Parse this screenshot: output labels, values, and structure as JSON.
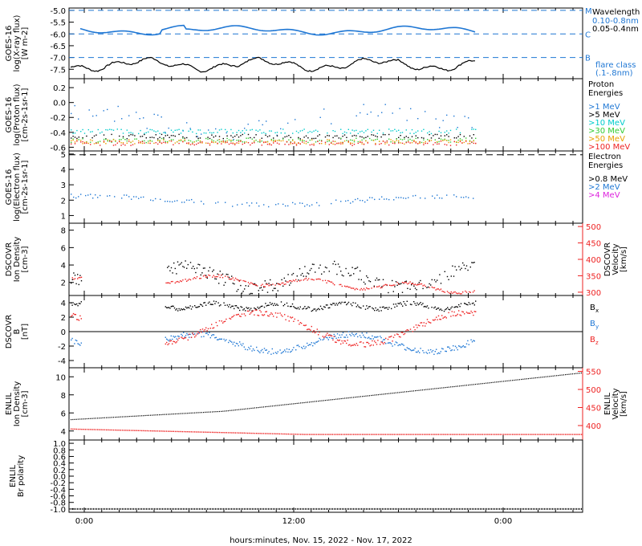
{
  "chart_data": [
    {
      "type": "line",
      "panel": "xray",
      "ylabel_lines": [
        "GOES-16",
        "log(X-ray flux)",
        "[W m-2]"
      ],
      "yticks": [
        "-5.0",
        "-5.5",
        "-6.0",
        "-6.5",
        "-7.0",
        "-7.5"
      ],
      "ylim": [
        -7.9,
        -4.9
      ],
      "legend_title": "Wavelength",
      "series": [
        {
          "name": "0.10-0.8nm",
          "color": "#1f77d4",
          "level": -5.85
        },
        {
          "name": "0.05-0.4nm",
          "color": "#000000",
          "level": -7.3
        }
      ],
      "flare_lines": [
        {
          "label": "M",
          "value": -5.0
        },
        {
          "label": "C",
          "value": -6.0
        },
        {
          "label": "B",
          "value": -7.0
        }
      ],
      "flare_note": [
        "flare class",
        "(.1-.8nm)"
      ]
    },
    {
      "type": "scatter",
      "panel": "proton",
      "ylabel_lines": [
        "GOES-16",
        "log(Proton flux)",
        "[cm-2s-1sr-1]"
      ],
      "yticks": [
        "0.2",
        "0.0",
        "-0.2",
        "-0.4",
        "-0.6"
      ],
      "ylim": [
        -0.65,
        0.32
      ],
      "legend_title": [
        "Proton",
        "Energies"
      ],
      "series": [
        {
          "name": ">1 MeV",
          "color": "#1f77d4",
          "level": -0.25
        },
        {
          "name": ">5 MeV",
          "color": "#000000",
          "level": -0.45
        },
        {
          "name": ">10 MeV",
          "color": "#00cccc",
          "level": -0.38
        },
        {
          "name": ">30 MeV",
          "color": "#33cc33",
          "level": -0.5
        },
        {
          "name": ">50 MeV",
          "color": "#e8a000",
          "level": -0.52
        },
        {
          "name": ">100 MeV",
          "color": "#ee2222",
          "level": -0.54
        }
      ]
    },
    {
      "type": "scatter",
      "panel": "electron",
      "ylabel_lines": [
        "GOES-16",
        "log(Electron flux)",
        "[cm-2s-1sr-1]"
      ],
      "yticks": [
        "5",
        "4",
        "3",
        "2",
        "1"
      ],
      "ylim": [
        0.5,
        5.2
      ],
      "legend_title": [
        "Electron",
        "Energies"
      ],
      "series": [
        {
          "name": ">0.8 MeV",
          "color": "#000000",
          "level": 4.95
        },
        {
          "name": ">2 MeV",
          "color": "#1f77d4",
          "level": 2.0
        },
        {
          "name": ">4 MeV",
          "color": "#dd22dd",
          "level": null
        }
      ]
    },
    {
      "type": "scatter",
      "panel": "dscovr-plasma",
      "ylabel_lines": [
        "DSCOVR",
        "Ion Density",
        "[cm-3]"
      ],
      "yticks": [
        "8",
        "6",
        "4",
        "2"
      ],
      "ylim": [
        0.5,
        8.8
      ],
      "y2label_lines": [
        "DSCOVR",
        "Velocity",
        "[km/s]"
      ],
      "y2ticks": [
        "500",
        "450",
        "400",
        "350",
        "300"
      ],
      "y2lim": [
        290,
        510
      ],
      "series": [
        {
          "name": "Ion Density",
          "color": "#000000"
        },
        {
          "name": "Velocity",
          "color": "#ee2222"
        }
      ]
    },
    {
      "type": "scatter",
      "panel": "dscovr-mag",
      "ylabel_lines": [
        "DSCOVR",
        "B",
        "[nT]"
      ],
      "yticks": [
        "4",
        "2",
        "0",
        "-2",
        "-4"
      ],
      "ylim": [
        -5,
        5
      ],
      "series": [
        {
          "name": "Bx",
          "color": "#000000"
        },
        {
          "name": "By",
          "color": "#1f77d4"
        },
        {
          "name": "Bz",
          "color": "#ee2222"
        }
      ]
    },
    {
      "type": "line",
      "panel": "enlil-plasma",
      "ylabel_lines": [
        "ENLIL",
        "Ion Density",
        "[cm-3]"
      ],
      "yticks": [
        "10",
        "8",
        "6",
        "4"
      ],
      "ylim": [
        3.0,
        11.0
      ],
      "y2label_lines": [
        "ENLIL",
        "Velocity",
        "[km/s]"
      ],
      "y2ticks": [
        "550",
        "500",
        "450",
        "400"
      ],
      "y2lim": [
        360,
        560
      ],
      "series": [
        {
          "name": "Ion Density",
          "color": "#000000",
          "start": 5.3,
          "end": 10.5
        },
        {
          "name": "Velocity",
          "color": "#ee2222",
          "start": 392,
          "end": 377
        }
      ]
    },
    {
      "type": "line",
      "panel": "enlil-polarity",
      "ylabel_lines": [
        "ENLIL",
        "Br polarity"
      ],
      "yticks": [
        "1.0",
        "0.8",
        "0.6",
        "0.4",
        "0.2",
        "0.0",
        "-0.2",
        "-0.4",
        "-0.6",
        "-0.8",
        "-1.0"
      ],
      "ylim": [
        -1.1,
        1.1
      ],
      "series": [
        {
          "name": "Br polarity",
          "color": "#000000",
          "level": -1.0
        }
      ]
    }
  ],
  "xaxis": {
    "ticks": [
      "0:00",
      "12:00",
      "0:00"
    ],
    "label": "hours:minutes, Nov. 15, 2022 - Nov. 17, 2022"
  }
}
